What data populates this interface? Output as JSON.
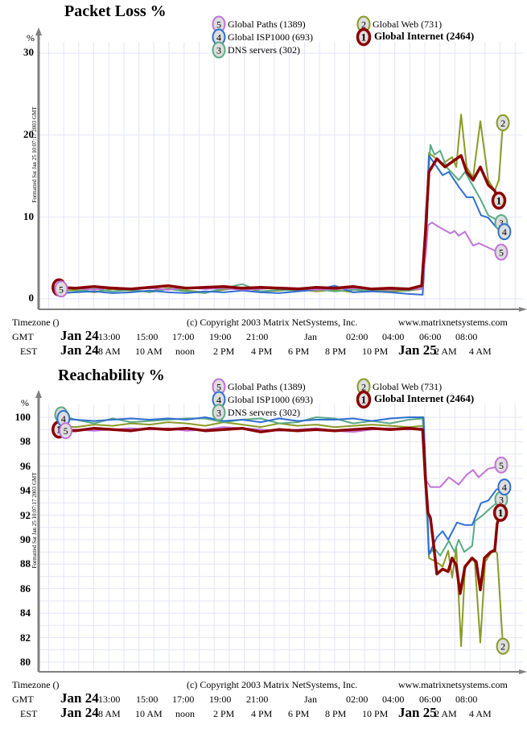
{
  "colors": {
    "global_internet": "#8b0000",
    "global_web": "#8a9a26",
    "global_isp1000": "#2f6fd0",
    "dns_servers": "#5aaa84",
    "global_paths": "#c272d8",
    "grid": "#e4e4fa",
    "axis": "#808080"
  },
  "footer": {
    "timezone_label": "Timezone ()",
    "copyright": "(c) Copyright 2003 Matrix NetSystems, Inc.",
    "website": "www.matrixnetsystems.com",
    "gmt_label": "GMT",
    "est_label": "EST",
    "gmt_ticks": [
      "Jan 24",
      "13:00",
      "15:00",
      "17:00",
      "19:00",
      "21:00",
      "Jan",
      "02:00",
      "04:00",
      "06:00",
      "08:00"
    ],
    "est_ticks": [
      "Jan 24",
      "8 AM",
      "10 AM",
      "noon",
      "2 PM",
      "4 PM",
      "6 PM",
      "8 PM",
      "10 PM",
      "Jan 25",
      "2 AM",
      "4 AM"
    ]
  },
  "chart_data": [
    {
      "type": "line",
      "title": "Packet Loss %",
      "ylabel": "%",
      "ylim": [
        0,
        30
      ],
      "yticks": [
        "30",
        "20",
        "10",
        "0"
      ],
      "x_unit": "hours after Jan 24 10:00 GMT",
      "xlim": [
        -1,
        25.2
      ],
      "grid": true,
      "timestamp": "Formatted Sat Jan 25 10:07:17 2003 GMT",
      "legend": [
        {
          "num": "5",
          "label": "Global Paths (1389)",
          "key": "global_paths"
        },
        {
          "num": "2",
          "label": "Global Web (731)",
          "key": "global_web"
        },
        {
          "num": "4",
          "label": "Global ISP1000 (693)",
          "key": "global_isp1000"
        },
        {
          "num": "1",
          "label": "Global Internet (2464)",
          "key": "global_internet"
        },
        {
          "num": "3",
          "label": "DNS servers (302)",
          "key": "dns_servers"
        }
      ],
      "start_labels": [
        "1",
        "5"
      ],
      "series": [
        {
          "num": "2",
          "key": "global_web",
          "hourly": [
            0.9,
            1.1,
            0.8,
            1.2,
            1.0,
            0.9,
            1.3,
            1.0,
            0.8,
            1.1,
            1.4,
            0.9,
            1.0,
            1.2,
            0.9,
            1.1,
            0.8,
            1.0,
            0.9,
            1.0
          ],
          "points": [
            [
              19.7,
              1.2
            ],
            [
              19.95,
              10
            ],
            [
              20.09,
              17.8
            ],
            [
              20.83,
              16.5
            ],
            [
              21.35,
              17.3
            ],
            [
              21.57,
              16.1
            ],
            [
              21.83,
              22.5
            ],
            [
              22.13,
              16.1
            ],
            [
              22.48,
              14.8
            ],
            [
              22.87,
              21.7
            ],
            [
              23.3,
              14.5
            ],
            [
              23.65,
              13.2
            ],
            [
              23.87,
              14.5
            ],
            [
              24.09,
              21.5
            ]
          ]
        },
        {
          "num": "3",
          "key": "dns_servers",
          "hourly": [
            0.5,
            0.9,
            1.2,
            0.9,
            1.1,
            0.8,
            1.2,
            0.9,
            0.7,
            1.3,
            1.8,
            0.9,
            1.1,
            1.0,
            1.2,
            0.9,
            1.1,
            1.0,
            1.2,
            1.0
          ],
          "points": [
            [
              19.7,
              1.3
            ],
            [
              19.9,
              9
            ],
            [
              20.17,
              18.8
            ],
            [
              20.39,
              17.6
            ],
            [
              20.7,
              18.1
            ],
            [
              21.04,
              16.1
            ],
            [
              21.7,
              14.5
            ],
            [
              22.04,
              15.5
            ],
            [
              22.87,
              12.2
            ],
            [
              23.3,
              10.2
            ],
            [
              23.78,
              9.6
            ],
            [
              24.0,
              9.3
            ]
          ]
        },
        {
          "num": "4",
          "key": "global_isp1000",
          "hourly": [
            0.7,
            0.8,
            0.9,
            0.7,
            0.8,
            1.0,
            0.8,
            0.7,
            0.9,
            0.8,
            1.0,
            0.8,
            0.7,
            0.9,
            1.1,
            1.6,
            0.8,
            0.9,
            0.8,
            0.6
          ],
          "points": [
            [
              19.75,
              0.5
            ],
            [
              20.0,
              10
            ],
            [
              20.09,
              17.5
            ],
            [
              20.83,
              15.1
            ],
            [
              21.17,
              15.5
            ],
            [
              21.7,
              13.7
            ],
            [
              22.13,
              12.4
            ],
            [
              22.48,
              12.4
            ],
            [
              22.91,
              10.2
            ],
            [
              23.3,
              9.9
            ],
            [
              23.74,
              8.7
            ],
            [
              24.17,
              8.2
            ]
          ]
        },
        {
          "num": "5",
          "key": "global_paths",
          "hourly": [
            1.2,
            1.3,
            1.1,
            1.4,
            1.2,
            1.3,
            1.1,
            1.4,
            1.2,
            1.3,
            1.1,
            1.2,
            1.4,
            1.3,
            1.1,
            1.2,
            1.3,
            1.2,
            1.1,
            1.2
          ],
          "points": [
            [
              19.7,
              1.2
            ],
            [
              19.95,
              6
            ],
            [
              20.04,
              9.0
            ],
            [
              20.26,
              9.3
            ],
            [
              20.61,
              8.8
            ],
            [
              21.26,
              8.0
            ],
            [
              21.48,
              8.3
            ],
            [
              21.7,
              7.7
            ],
            [
              22.04,
              8.2
            ],
            [
              22.48,
              6.5
            ],
            [
              22.78,
              6.8
            ],
            [
              23.74,
              5.8
            ],
            [
              24.0,
              5.7
            ]
          ]
        },
        {
          "num": "1",
          "key": "global_internet",
          "hourly": [
            1.4,
            1.3,
            1.5,
            1.3,
            1.2,
            1.4,
            1.6,
            1.3,
            1.4,
            1.5,
            1.3,
            1.4,
            1.3,
            1.2,
            1.4,
            1.3,
            1.5,
            1.2,
            1.3,
            1.2
          ],
          "points": [
            [
              19.7,
              1.6
            ],
            [
              19.9,
              8
            ],
            [
              20.09,
              15.5
            ],
            [
              20.52,
              17.1
            ],
            [
              20.96,
              16.1
            ],
            [
              21.39,
              16.8
            ],
            [
              21.83,
              17.5
            ],
            [
              22.13,
              15.5
            ],
            [
              22.48,
              14.5
            ],
            [
              22.87,
              16.1
            ],
            [
              23.3,
              13.9
            ],
            [
              23.65,
              13.2
            ],
            [
              23.87,
              12
            ]
          ]
        }
      ]
    },
    {
      "type": "line",
      "title": "Reachability %",
      "ylabel": "%",
      "ylim": [
        80,
        100
      ],
      "yticks": [
        "100",
        "98",
        "96",
        "94",
        "92",
        "90",
        "88",
        "86",
        "84",
        "82",
        "80"
      ],
      "x_unit": "hours after Jan 24 10:00 GMT",
      "xlim": [
        -1,
        25.2
      ],
      "grid": true,
      "timestamp": "Formatted Sat Jan 25 10:07:17 2003 GMT",
      "legend": [
        {
          "num": "5",
          "label": "Global Paths (1389)",
          "key": "global_paths"
        },
        {
          "num": "2",
          "label": "Global Web (731)",
          "key": "global_web"
        },
        {
          "num": "4",
          "label": "Global ISP1000 (693)",
          "key": "global_isp1000"
        },
        {
          "num": "1",
          "label": "Global Internet (2464)",
          "key": "global_internet"
        },
        {
          "num": "3",
          "label": "DNS servers (302)",
          "key": "dns_servers"
        }
      ],
      "start_labels": [
        "1",
        "3",
        "4",
        "5"
      ],
      "series": [
        {
          "num": "2",
          "key": "global_web",
          "hourly": [
            99.3,
            99.2,
            99.4,
            99.3,
            99.5,
            99.4,
            99.6,
            99.5,
            99.3,
            99.6,
            99.4,
            99.2,
            99.5,
            99.3,
            99.4,
            99.2,
            99.3,
            99.4,
            99.3,
            99.2
          ],
          "points": [
            [
              19.8,
              99.3
            ],
            [
              19.95,
              94
            ],
            [
              20.09,
              88.5
            ],
            [
              20.48,
              88.2
            ],
            [
              20.83,
              87.8
            ],
            [
              21.13,
              89.1
            ],
            [
              21.35,
              86.9
            ],
            [
              21.57,
              89.3
            ],
            [
              21.83,
              81.3
            ],
            [
              22.04,
              87.6
            ],
            [
              22.35,
              88.5
            ],
            [
              22.57,
              88.2
            ],
            [
              22.87,
              81.6
            ],
            [
              23.13,
              88.2
            ],
            [
              23.57,
              89.2
            ],
            [
              23.78,
              88.9
            ],
            [
              24.09,
              81.3
            ]
          ]
        },
        {
          "num": "3",
          "key": "dns_servers",
          "hourly": [
            100.2,
            99.8,
            99.5,
            99.9,
            99.6,
            99.7,
            99.8,
            99.9,
            99.9,
            99.6,
            99.8,
            99.9,
            99.5,
            99.6,
            100.0,
            99.9,
            99.5,
            99.7,
            99.5,
            99.8
          ],
          "points": [
            [
              19.75,
              99.9
            ],
            [
              19.95,
              93
            ],
            [
              20.09,
              88.8
            ],
            [
              20.39,
              89.3
            ],
            [
              20.7,
              88.7
            ],
            [
              21.17,
              89.9
            ],
            [
              21.48,
              89.0
            ],
            [
              21.7,
              90.0
            ],
            [
              22.0,
              89.0
            ],
            [
              22.43,
              89.5
            ],
            [
              22.57,
              91.5
            ],
            [
              23.0,
              92.0
            ],
            [
              23.43,
              92.6
            ],
            [
              24.0,
              93.3
            ]
          ]
        },
        {
          "num": "4",
          "key": "global_isp1000",
          "hourly": [
            99.9,
            99.8,
            99.7,
            99.8,
            99.9,
            99.8,
            99.9,
            99.8,
            100,
            99.7,
            99.8,
            99.6,
            99.9,
            99.7,
            99.8,
            99.8,
            99.9,
            99.7,
            99.9,
            100
          ],
          "points": [
            [
              19.8,
              100
            ],
            [
              20.0,
              93
            ],
            [
              20.09,
              88.8
            ],
            [
              20.52,
              90.2
            ],
            [
              20.83,
              90.7
            ],
            [
              21.13,
              90.0
            ],
            [
              21.61,
              91.4
            ],
            [
              22.04,
              91.2
            ],
            [
              22.43,
              91.2
            ],
            [
              22.91,
              93.0
            ],
            [
              23.3,
              93.2
            ],
            [
              23.74,
              94.1
            ],
            [
              24.17,
              94.3
            ]
          ]
        },
        {
          "num": "5",
          "key": "global_paths",
          "hourly": [
            98.9,
            99.0,
            98.9,
            99.0,
            99.1,
            99.0,
            99.1,
            98.9,
            99.0,
            99.2,
            99.1,
            99.0,
            98.9,
            99.0,
            99.1,
            98.9,
            98.8,
            99.0,
            99.1,
            99.0
          ],
          "points": [
            [
              19.75,
              99.1
            ],
            [
              19.9,
              96
            ],
            [
              19.96,
              94.8
            ],
            [
              20.17,
              94.3
            ],
            [
              20.7,
              94.3
            ],
            [
              21.17,
              95.1
            ],
            [
              21.7,
              94.5
            ],
            [
              22.13,
              95.3
            ],
            [
              22.48,
              95.7
            ],
            [
              22.78,
              95.1
            ],
            [
              23.3,
              95.8
            ],
            [
              23.65,
              95.9
            ],
            [
              24.0,
              96.1
            ]
          ]
        },
        {
          "num": "1",
          "key": "global_internet",
          "hourly": [
            99.0,
            98.9,
            99.1,
            99.0,
            98.9,
            99.1,
            99.0,
            99.1,
            98.9,
            99.0,
            99.1,
            98.8,
            99.0,
            98.9,
            99.0,
            98.9,
            99.0,
            99.1,
            99.0,
            99.1
          ],
          "points": [
            [
              19.75,
              99.0
            ],
            [
              19.9,
              95
            ],
            [
              20.04,
              92.2
            ],
            [
              20.17,
              91.8
            ],
            [
              20.3,
              90.2
            ],
            [
              20.52,
              87.2
            ],
            [
              20.83,
              87.6
            ],
            [
              21.13,
              87.4
            ],
            [
              21.35,
              88.5
            ],
            [
              21.57,
              87.9
            ],
            [
              21.78,
              85.6
            ],
            [
              22.04,
              87.8
            ],
            [
              22.43,
              88.5
            ],
            [
              22.65,
              88.2
            ],
            [
              22.87,
              85.9
            ],
            [
              23.09,
              88.5
            ],
            [
              23.43,
              89.0
            ],
            [
              23.65,
              89.1
            ],
            [
              23.78,
              91.3
            ],
            [
              23.96,
              92.2
            ]
          ]
        }
      ]
    }
  ]
}
